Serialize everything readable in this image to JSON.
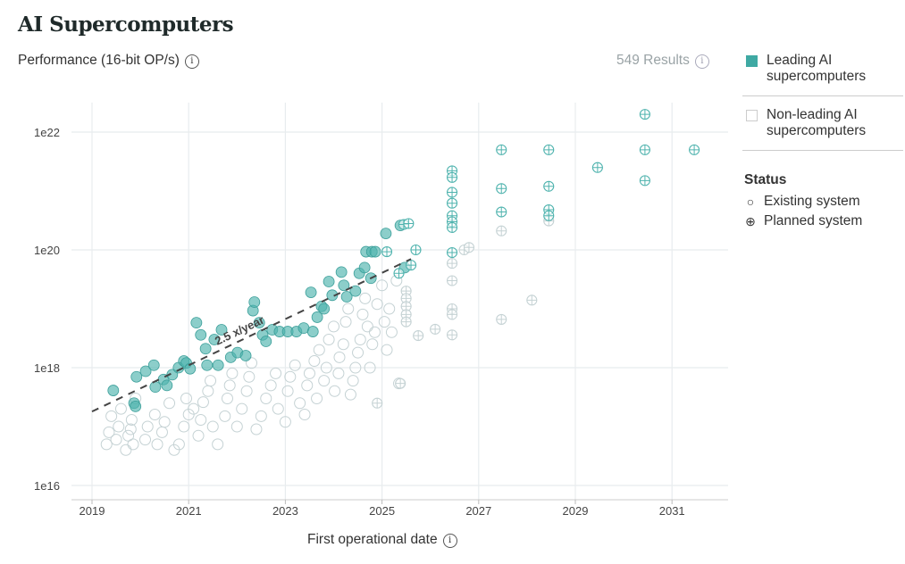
{
  "title": "AI Supercomputers",
  "results_label": "549 Results",
  "info_glyph": "i",
  "legend": {
    "leading": "Leading AI supercomputers",
    "non_leading": "Non-leading AI supercomputers",
    "status_title": "Status",
    "existing": "Existing system",
    "planned": "Planned system",
    "existing_glyph": "○",
    "planned_glyph": "⊕"
  },
  "colors": {
    "leading": "#4fb3ae",
    "non_leading": "#c5d2d4",
    "trend": "#444444"
  },
  "chart_data": {
    "type": "scatter",
    "ylabel": "Performance (16-bit OP/s)",
    "xlabel": "First operational date",
    "y_scale": "log",
    "ylim": [
      1e+16,
      1e+23
    ],
    "xlim": [
      2018.6,
      2032.2
    ],
    "x_ticks": [
      "2019",
      "2021",
      "2023",
      "2025",
      "2027",
      "2029",
      "2031"
    ],
    "y_ticks": [
      "1e16",
      "1e18",
      "1e20",
      "1e22"
    ],
    "grid": true,
    "legend_position": "right",
    "trend": {
      "label": "2.5 x/year",
      "from": [
        2019,
        1.8e+17
      ],
      "to": [
        2025.6,
        7e+19
      ]
    },
    "series": [
      {
        "name": "Leading AI supercomputers",
        "status": "existing",
        "points": [
          [
            2019.44,
            4.1e+17
          ],
          [
            2019.87,
            2.5e+17
          ],
          [
            2019.9,
            2.2e+17
          ],
          [
            2019.92,
            7e+17
          ],
          [
            2020.11,
            8.7e+17
          ],
          [
            2020.28,
            1.1e+18
          ],
          [
            2020.31,
            4.7e+17
          ],
          [
            2020.48,
            6.3e+17
          ],
          [
            2020.55,
            5e+17
          ],
          [
            2020.66,
            7.6e+17
          ],
          [
            2020.79,
            1e+18
          ],
          [
            2020.9,
            1.3e+18
          ],
          [
            2020.95,
            1.2e+18
          ],
          [
            2021.03,
            9.6e+17
          ],
          [
            2021.16,
            5.8e+18
          ],
          [
            2021.25,
            3.6e+18
          ],
          [
            2021.35,
            2.1e+18
          ],
          [
            2021.38,
            1.1e+18
          ],
          [
            2021.53,
            3e+18
          ],
          [
            2021.61,
            1.1e+18
          ],
          [
            2021.68,
            4.4e+18
          ],
          [
            2021.87,
            1.5e+18
          ],
          [
            2022.01,
            1.8e+18
          ],
          [
            2022.18,
            1.6e+18
          ],
          [
            2022.33,
            9.3e+18
          ],
          [
            2022.36,
            1.3e+19
          ],
          [
            2022.46,
            5.8e+18
          ],
          [
            2022.53,
            3.6e+18
          ],
          [
            2022.6,
            2.8e+18
          ],
          [
            2022.73,
            4.4e+18
          ],
          [
            2022.88,
            4.1e+18
          ],
          [
            2023.05,
            4.1e+18
          ],
          [
            2023.23,
            4.1e+18
          ],
          [
            2023.38,
            4.7e+18
          ],
          [
            2023.53,
            1.9e+19
          ],
          [
            2023.57,
            4.1e+18
          ],
          [
            2023.66,
            7.2e+18
          ],
          [
            2023.75,
            1.1e+19
          ],
          [
            2023.8,
            1e+19
          ],
          [
            2023.9,
            2.9e+19
          ],
          [
            2023.97,
            1.7e+19
          ],
          [
            2024.16,
            4.2e+19
          ],
          [
            2024.21,
            2.5e+19
          ],
          [
            2024.27,
            1.6e+19
          ],
          [
            2024.45,
            2e+19
          ],
          [
            2024.53,
            4e+19
          ],
          [
            2024.64,
            5e+19
          ],
          [
            2024.67,
            9.3e+19
          ],
          [
            2024.79,
            9.3e+19
          ],
          [
            2024.86,
            9.3e+19
          ],
          [
            2024.77,
            3.3e+19
          ],
          [
            2025.08,
            1.9e+20
          ],
          [
            2025.38,
            2.6e+20
          ],
          [
            2025.47,
            5e+19
          ]
        ]
      },
      {
        "name": "Leading AI supercomputers",
        "status": "planned",
        "points": [
          [
            2025.1,
            9.3e+19
          ],
          [
            2025.45,
            2.7e+20
          ],
          [
            2025.55,
            2.8e+20
          ],
          [
            2025.7,
            1e+20
          ],
          [
            2025.6,
            5.5e+19
          ],
          [
            2025.35,
            4e+19
          ],
          [
            2026.45,
            2.2e+21
          ],
          [
            2026.45,
            1.7e+21
          ],
          [
            2026.45,
            9.5e+20
          ],
          [
            2026.45,
            6.2e+20
          ],
          [
            2026.45,
            3.8e+20
          ],
          [
            2026.45,
            3e+20
          ],
          [
            2026.45,
            2.4e+20
          ],
          [
            2026.45,
            9e+19
          ],
          [
            2027.47,
            5e+21
          ],
          [
            2027.47,
            1.1e+21
          ],
          [
            2027.47,
            4.4e+20
          ],
          [
            2028.45,
            5e+21
          ],
          [
            2028.45,
            1.2e+21
          ],
          [
            2028.45,
            4.8e+20
          ],
          [
            2028.45,
            3.8e+20
          ],
          [
            2029.46,
            2.5e+21
          ],
          [
            2030.44,
            2e+22
          ],
          [
            2030.44,
            5e+21
          ],
          [
            2030.44,
            1.5e+21
          ],
          [
            2031.46,
            5e+21
          ]
        ]
      },
      {
        "name": "Non-leading AI supercomputers",
        "status": "existing",
        "points": [
          [
            2019.3,
            5e+16
          ],
          [
            2019.35,
            8e+16
          ],
          [
            2019.4,
            1.5e+17
          ],
          [
            2019.5,
            6e+16
          ],
          [
            2019.55,
            1e+17
          ],
          [
            2019.6,
            2e+17
          ],
          [
            2019.7,
            4e+16
          ],
          [
            2019.75,
            7e+16
          ],
          [
            2019.8,
            9e+16
          ],
          [
            2019.82,
            1.3e+17
          ],
          [
            2019.85,
            5e+16
          ],
          [
            2019.9,
            3e+17
          ],
          [
            2020.1,
            6e+16
          ],
          [
            2020.15,
            1e+17
          ],
          [
            2020.3,
            1.6e+17
          ],
          [
            2020.35,
            5e+16
          ],
          [
            2020.45,
            8e+16
          ],
          [
            2020.5,
            1.2e+17
          ],
          [
            2020.6,
            2.5e+17
          ],
          [
            2020.7,
            4e+16
          ],
          [
            2020.8,
            5e+16
          ],
          [
            2020.9,
            1e+17
          ],
          [
            2020.95,
            3e+17
          ],
          [
            2021.0,
            1.6e+17
          ],
          [
            2021.1,
            2e+17
          ],
          [
            2021.2,
            7e+16
          ],
          [
            2021.25,
            1.3e+17
          ],
          [
            2021.3,
            2.6e+17
          ],
          [
            2021.4,
            4e+17
          ],
          [
            2021.45,
            6e+17
          ],
          [
            2021.5,
            1e+17
          ],
          [
            2021.6,
            5e+16
          ],
          [
            2021.75,
            1.5e+17
          ],
          [
            2021.8,
            3e+17
          ],
          [
            2021.85,
            5e+17
          ],
          [
            2021.9,
            8e+17
          ],
          [
            2022.0,
            1e+17
          ],
          [
            2022.1,
            2e+17
          ],
          [
            2022.2,
            4e+17
          ],
          [
            2022.25,
            7e+17
          ],
          [
            2022.3,
            1.2e+18
          ],
          [
            2022.4,
            9e+16
          ],
          [
            2022.5,
            1.5e+17
          ],
          [
            2022.6,
            3e+17
          ],
          [
            2022.7,
            5e+17
          ],
          [
            2022.8,
            8e+17
          ],
          [
            2022.85,
            2e+17
          ],
          [
            2023.0,
            1.2e+17
          ],
          [
            2023.05,
            4e+17
          ],
          [
            2023.1,
            7e+17
          ],
          [
            2023.2,
            1.1e+18
          ],
          [
            2023.3,
            2.5e+17
          ],
          [
            2023.4,
            1.6e+17
          ],
          [
            2023.45,
            5e+17
          ],
          [
            2023.5,
            8e+17
          ],
          [
            2023.6,
            1.3e+18
          ],
          [
            2023.65,
            3e+17
          ],
          [
            2023.7,
            2e+18
          ],
          [
            2023.8,
            6e+17
          ],
          [
            2023.85,
            1e+18
          ],
          [
            2023.9,
            3e+18
          ],
          [
            2024.0,
            5e+18
          ],
          [
            2024.02,
            4e+17
          ],
          [
            2024.1,
            8e+17
          ],
          [
            2024.12,
            1.5e+18
          ],
          [
            2024.2,
            2.5e+18
          ],
          [
            2024.25,
            6e+18
          ],
          [
            2024.3,
            1e+19
          ],
          [
            2024.35,
            3.5e+17
          ],
          [
            2024.4,
            6e+17
          ],
          [
            2024.45,
            1e+18
          ],
          [
            2024.5,
            1.8e+18
          ],
          [
            2024.55,
            3e+18
          ],
          [
            2024.6,
            8e+18
          ],
          [
            2024.65,
            1.5e+19
          ],
          [
            2024.7,
            5e+18
          ],
          [
            2024.75,
            1e+18
          ],
          [
            2024.8,
            2.5e+18
          ],
          [
            2024.85,
            4e+18
          ],
          [
            2024.9,
            1.2e+19
          ],
          [
            2025.0,
            2.5e+19
          ],
          [
            2025.05,
            6e+18
          ],
          [
            2025.1,
            2e+18
          ],
          [
            2025.15,
            1e+19
          ],
          [
            2025.2,
            4e+18
          ],
          [
            2025.3,
            3e+19
          ],
          [
            2025.35,
            5.4e+17
          ]
        ]
      },
      {
        "name": "Non-leading AI supercomputers",
        "status": "planned",
        "points": [
          [
            2024.9,
            2.5e+17
          ],
          [
            2025.38,
            5.4e+17
          ],
          [
            2025.5,
            2e+19
          ],
          [
            2025.5,
            1.5e+19
          ],
          [
            2025.5,
            1.1e+19
          ],
          [
            2025.5,
            8e+18
          ],
          [
            2025.5,
            6e+18
          ],
          [
            2025.75,
            3.5e+18
          ],
          [
            2026.1,
            4.5e+18
          ],
          [
            2026.45,
            5.9e+19
          ],
          [
            2026.45,
            3e+19
          ],
          [
            2026.45,
            1e+19
          ],
          [
            2026.45,
            8e+18
          ],
          [
            2026.45,
            3.6e+18
          ],
          [
            2026.7,
            1e+20
          ],
          [
            2026.8,
            1.1e+20
          ],
          [
            2027.47,
            2.1e+20
          ],
          [
            2027.47,
            6.6e+18
          ],
          [
            2028.1,
            1.4e+19
          ],
          [
            2028.45,
            3.1e+20
          ]
        ]
      }
    ]
  }
}
